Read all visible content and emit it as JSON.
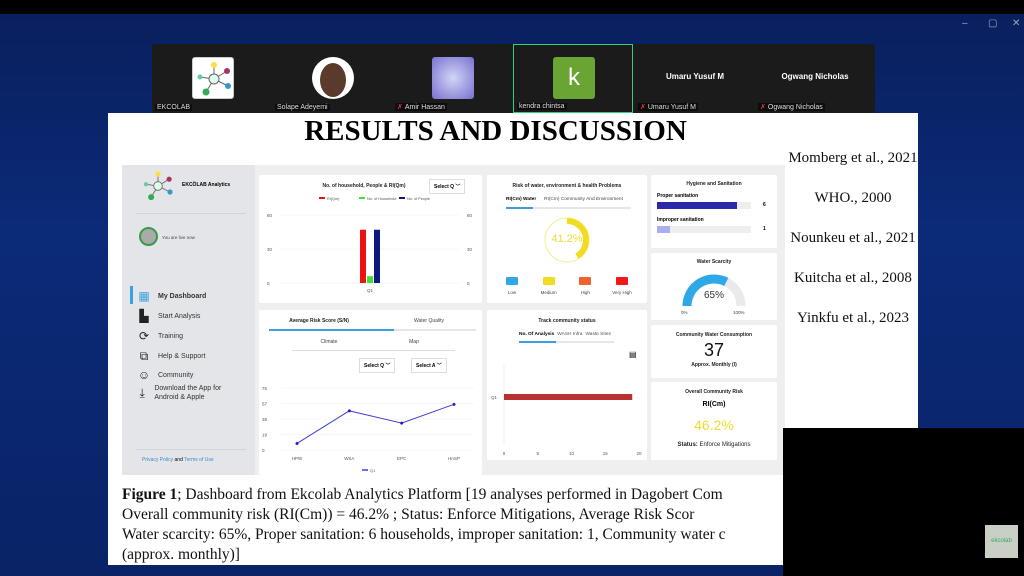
{
  "window": {
    "controls": [
      "–",
      "▢",
      "✕"
    ]
  },
  "participants": [
    {
      "name": "EKCOLAB",
      "muted": false,
      "display": "logo"
    },
    {
      "name": "Solape Adeyemi",
      "muted": false,
      "display": "photo"
    },
    {
      "name": "Amir Hassan",
      "muted": true,
      "display": "photo"
    },
    {
      "name": "kendra chintsa",
      "muted": false,
      "display": "k",
      "active": true,
      "color": "#6aa534"
    },
    {
      "name": "Umaru Yusuf M",
      "muted": true,
      "display_name": "Umaru Yusuf M"
    },
    {
      "name": "Ogwang Nicholas",
      "muted": true,
      "display_name": "Ogwang Nicholas"
    }
  ],
  "slide": {
    "title": "RESULTS AND DISCUSSION",
    "references": [
      "Momberg et al., 2021",
      "WHO., 2000",
      "Nounkeu et al., 2021",
      "Kuitcha et al., 2008",
      "Yinkfu et al., 2023"
    ],
    "caption": {
      "bold": "Figure 1",
      "lines": [
        "; Dashboard from Ekcolab Analytics Platform [19 analyses performed in Dagobert Com",
        "Overall community risk (RI(Cm)) = 46.2% ; Status: Enforce Mitigations, Average Risk Scor",
        "Water scarcity: 65%, Proper sanitation: 6 households, improper sanitation: 1, Community water c",
        "(approx. monthly)]"
      ]
    }
  },
  "dashboard": {
    "brand": "EKCÖLAB Analytics",
    "live": "You are live now",
    "nav": [
      {
        "label": "My Dashboard",
        "icon": "grid-icon",
        "active": true
      },
      {
        "label": "Start Analysis",
        "icon": "analytics-icon"
      },
      {
        "label": "Training",
        "icon": "training-icon"
      },
      {
        "label": "Help & Support",
        "icon": "help-icon"
      },
      {
        "label": "Community",
        "icon": "community-icon"
      },
      {
        "label": "Download the App for Android & Apple",
        "icon": "download-icon"
      }
    ],
    "footer": {
      "privacy": "Privacy Policy",
      "and": " and ",
      "terms": "Terms of Use"
    },
    "household_chart": {
      "title": "No. of household, People & RI(Qm)",
      "select": "Select Q"
    },
    "risk_card": {
      "title": "Risk of water, environment & health Problems",
      "tabs": [
        "RI(Cm) Water",
        "RI(Cm) Community And Environment"
      ],
      "value": "41.2%",
      "percent": 41.2,
      "legend": [
        {
          "label": "Low",
          "color": "#2fa8e8"
        },
        {
          "label": "Medium",
          "color": "#f0dc20"
        },
        {
          "label": "High",
          "color": "#f06030"
        },
        {
          "label": "Very High",
          "color": "#f01818"
        }
      ]
    },
    "hygiene": {
      "title": "Hygiene and Sanitation",
      "items": [
        {
          "label": "Proper sanitation",
          "value": "6",
          "fill": 0.85,
          "color": "#2a2aa8"
        },
        {
          "label": "Improper sanitation",
          "value": "1",
          "fill": 0.14,
          "color": "#a8aef0"
        }
      ]
    },
    "water_scarcity": {
      "title": "Water Scarcity",
      "value": "65%",
      "percent": 65,
      "min": "0%",
      "max": "100%"
    },
    "avg_risk": {
      "tabs": [
        "Average Risk Score (S/N)",
        "Water Quality"
      ],
      "subtabs": [
        "Climate",
        "Map"
      ],
      "selects": [
        "Select Q",
        "Select A"
      ]
    },
    "track": {
      "title": "Track community status",
      "tabs": [
        "No. Of Analysis",
        "WASH Infra",
        "Waste Sites"
      ]
    },
    "consumption": {
      "title": "Community Water Consumption",
      "value": "37",
      "unit": "Approx. Monthly (l)"
    },
    "overall": {
      "title": "Overall Community Risk",
      "label": "RI(Cm)",
      "value": "46.2%",
      "status_label": "Status:",
      "status": " Enforce Mitigations"
    }
  },
  "chart_data": [
    {
      "type": "bar",
      "categories": [
        "Q1"
      ],
      "series": [
        {
          "name": "RI(Qm)",
          "values": [
            47
          ],
          "color": "#ee1111"
        },
        {
          "name": "No. of Household",
          "values": [
            6
          ],
          "color": "#44dd33"
        },
        {
          "name": "No. of People",
          "values": [
            47
          ],
          "color": "#0a1a80"
        }
      ],
      "ylim": [
        0,
        60
      ],
      "yticks": [
        0,
        30,
        60
      ],
      "legend": "top"
    },
    {
      "type": "line",
      "categories": [
        "HPW",
        "WSA",
        "EPC",
        "HnSP"
      ],
      "series": [
        {
          "name": "Q1",
          "values": [
            8,
            48,
            33,
            56
          ],
          "color": "#4040d0"
        }
      ],
      "ylim": [
        0,
        76
      ],
      "yticks": [
        0,
        19,
        38,
        57,
        76
      ],
      "legend": "bottom"
    },
    {
      "type": "bar",
      "orientation": "horizontal",
      "categories": [
        "Q1"
      ],
      "values": [
        19
      ],
      "color": "#b83030",
      "xlim": [
        0,
        20
      ],
      "xticks": [
        0,
        5,
        10,
        15,
        20
      ]
    }
  ]
}
